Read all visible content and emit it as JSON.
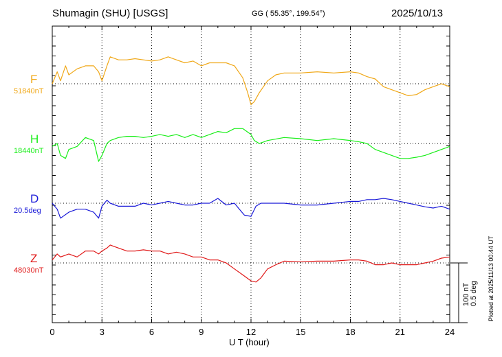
{
  "header": {
    "station": "Shumagin (SHU)  [USGS]",
    "coords": "GG ( 55.35°, 199.54°)",
    "date": "2025/10/13"
  },
  "plotted_note": "Plotted at 2025/11/13 00:44 UT",
  "scale_label": [
    "100 nT",
    "0.5 deg"
  ],
  "colors": {
    "F": "#f0a818",
    "H": "#18ee18",
    "D": "#1818d8",
    "Z": "#e01818",
    "grid": "#000000"
  },
  "chart_data": {
    "type": "line",
    "xlabel": "U T (hour)",
    "xlim": [
      0,
      24
    ],
    "xticks": [
      "0",
      "3",
      "6",
      "9",
      "12",
      "15",
      "18",
      "21",
      "24"
    ],
    "grid": true,
    "scale_bar": {
      "nT": 100,
      "deg": 0.5
    },
    "series": [
      {
        "name": "F",
        "baseline_label": "51840nT",
        "x": [
          0,
          0.3,
          0.5,
          0.8,
          1,
          1.5,
          2,
          2.5,
          2.8,
          3,
          3.3,
          3.5,
          4,
          4.5,
          5,
          5.5,
          6,
          6.5,
          7,
          7.5,
          8,
          8.5,
          9,
          9.5,
          10,
          10.5,
          11,
          11.5,
          11.8,
          12,
          12.2,
          12.5,
          13,
          13.5,
          14,
          15,
          16,
          17,
          18,
          18.5,
          19,
          19.5,
          20,
          20.5,
          21,
          21.5,
          22,
          22.5,
          23,
          23.5,
          24
        ],
        "y": [
          0,
          20,
          5,
          30,
          15,
          25,
          30,
          30,
          20,
          5,
          30,
          45,
          40,
          40,
          42,
          40,
          38,
          40,
          45,
          40,
          35,
          38,
          30,
          35,
          35,
          35,
          30,
          10,
          -15,
          -35,
          -30,
          -15,
          5,
          15,
          18,
          18,
          20,
          18,
          20,
          18,
          12,
          8,
          -5,
          -10,
          -15,
          -20,
          -18,
          -10,
          -5,
          0,
          -5
        ]
      },
      {
        "name": "H",
        "baseline_label": "18440nT",
        "x": [
          0,
          0.3,
          0.5,
          0.8,
          1,
          1.5,
          2,
          2.5,
          2.8,
          3,
          3.3,
          3.5,
          4,
          4.5,
          5,
          5.5,
          6,
          6.5,
          7,
          7.5,
          8,
          8.5,
          9,
          9.5,
          10,
          10.5,
          11,
          11.5,
          12,
          12.2,
          12.5,
          13,
          14,
          15,
          16,
          17,
          18,
          18.5,
          19,
          19.5,
          20,
          20.5,
          21,
          21.5,
          22,
          22.5,
          23,
          23.5,
          24
        ],
        "y": [
          -5,
          0,
          -20,
          -25,
          -10,
          -5,
          10,
          5,
          -30,
          -20,
          0,
          5,
          10,
          12,
          12,
          10,
          12,
          15,
          12,
          15,
          10,
          15,
          10,
          15,
          20,
          18,
          25,
          25,
          15,
          5,
          0,
          5,
          10,
          8,
          5,
          8,
          5,
          3,
          0,
          -10,
          -15,
          -20,
          -25,
          -25,
          -23,
          -20,
          -15,
          -10,
          -5
        ]
      },
      {
        "name": "D",
        "baseline_label": "20.5deg",
        "x": [
          0,
          0.3,
          0.5,
          1,
          1.5,
          2,
          2.5,
          2.8,
          3,
          3.3,
          3.5,
          4,
          4.5,
          5,
          5.5,
          6,
          6.5,
          7,
          7.5,
          8,
          8.5,
          9,
          9.5,
          10,
          10.5,
          11,
          11.3,
          11.6,
          12,
          12.3,
          12.6,
          13,
          14,
          15,
          16,
          17,
          18,
          18.5,
          19,
          19.5,
          20,
          20.5,
          21,
          21.5,
          22,
          22.5,
          23,
          23.5,
          24
        ],
        "y": [
          0,
          -10,
          -25,
          -15,
          -10,
          -10,
          -15,
          -25,
          -5,
          5,
          0,
          -5,
          -5,
          -5,
          0,
          -3,
          0,
          3,
          0,
          -3,
          -3,
          0,
          0,
          8,
          -3,
          0,
          -10,
          -20,
          -22,
          -5,
          0,
          0,
          0,
          -3,
          -3,
          0,
          3,
          3,
          6,
          6,
          8,
          6,
          3,
          0,
          -3,
          -6,
          -8,
          -5,
          -10
        ]
      },
      {
        "name": "Z",
        "baseline_label": "48030nT",
        "x": [
          0,
          0.3,
          0.5,
          1,
          1.5,
          2,
          2.5,
          2.8,
          3,
          3.3,
          3.5,
          4,
          4.5,
          5,
          5.5,
          6,
          6.5,
          7,
          7.5,
          8,
          8.5,
          9,
          9.5,
          10,
          10.5,
          11,
          11.5,
          12,
          12.3,
          12.6,
          13,
          13.5,
          14,
          15,
          16,
          17,
          18,
          18.5,
          19,
          19.5,
          20,
          20.5,
          21,
          21.5,
          22,
          22.5,
          23,
          23.5,
          24
        ],
        "y": [
          5,
          15,
          10,
          15,
          10,
          20,
          20,
          15,
          20,
          25,
          30,
          25,
          20,
          20,
          22,
          20,
          20,
          15,
          18,
          15,
          10,
          10,
          5,
          5,
          0,
          -10,
          -20,
          -30,
          -32,
          -25,
          -10,
          -3,
          3,
          2,
          3,
          3,
          5,
          5,
          3,
          -3,
          -3,
          0,
          -3,
          -3,
          -3,
          0,
          3,
          8,
          10
        ]
      }
    ]
  }
}
